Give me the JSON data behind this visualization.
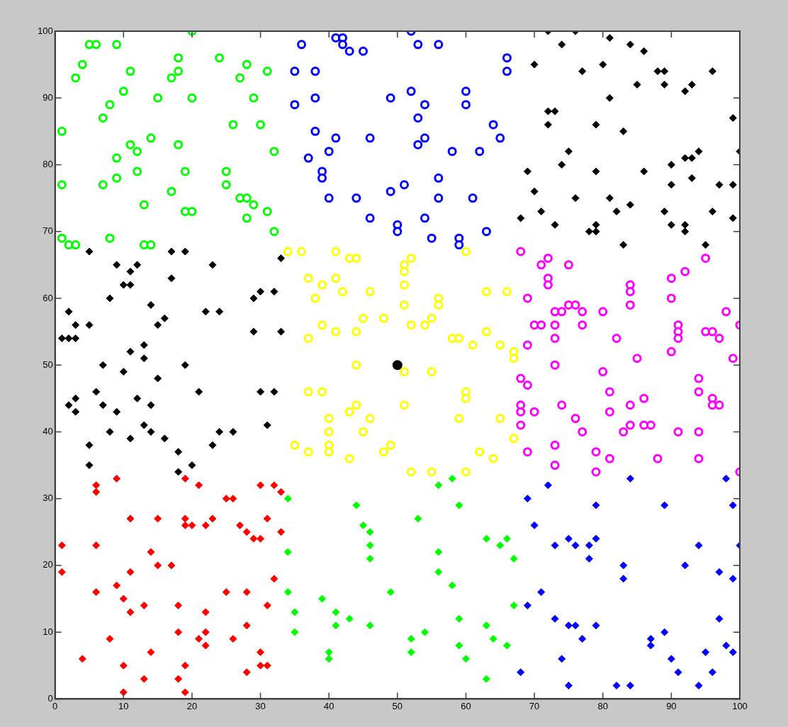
{
  "chart_data": {
    "type": "scatter",
    "xlim": [
      0,
      100
    ],
    "ylim": [
      0,
      100
    ],
    "xticks": [
      0,
      10,
      20,
      30,
      40,
      50,
      60,
      70,
      80,
      90,
      100
    ],
    "yticks": [
      0,
      10,
      20,
      30,
      40,
      50,
      60,
      70,
      80,
      90,
      100
    ],
    "grid": false,
    "series": [
      {
        "type": "scatter",
        "color": "#00ff00",
        "marker": "circle",
        "x": [
          1,
          3,
          4,
          5,
          6,
          9,
          11,
          10,
          8,
          7,
          20,
          18,
          18,
          17,
          24,
          28,
          27,
          31,
          15,
          20,
          29,
          26,
          30,
          14,
          11,
          12,
          18,
          32,
          9,
          12,
          19,
          25,
          25,
          1,
          7,
          9,
          17,
          27,
          28,
          29,
          13,
          19,
          20,
          31,
          28,
          32,
          1,
          2,
          3,
          8,
          13,
          14
        ],
        "values": [
          85,
          93,
          95,
          98,
          98,
          98,
          94,
          91,
          89,
          87,
          100,
          96,
          94,
          93,
          96,
          95,
          93,
          94,
          90,
          90,
          90,
          86,
          86,
          84,
          83,
          82,
          83,
          82,
          81,
          79,
          79,
          79,
          77,
          77,
          77,
          78,
          76,
          75,
          75,
          74,
          74,
          73,
          73,
          73,
          72,
          70,
          69,
          68,
          68,
          69,
          68,
          68
        ]
      },
      {
        "type": "scatter",
        "color": "#0000ff",
        "marker": "circle",
        "x": [
          36,
          41,
          42,
          42,
          43,
          45,
          52,
          53,
          56,
          66,
          66,
          35,
          38,
          35,
          38,
          49,
          52,
          54,
          53,
          60,
          60,
          64,
          65,
          38,
          41,
          40,
          37,
          46,
          54,
          53,
          58,
          62,
          39,
          39,
          40,
          44,
          49,
          51,
          56,
          56,
          61,
          46,
          50,
          50,
          54,
          55,
          59,
          59,
          63
        ],
        "values": [
          98,
          99,
          99,
          98,
          97,
          97,
          100,
          98,
          98,
          96,
          94,
          94,
          94,
          89,
          90,
          90,
          91,
          89,
          87,
          91,
          89,
          86,
          84,
          85,
          84,
          82,
          81,
          84,
          84,
          83,
          82,
          82,
          79,
          78,
          75,
          75,
          76,
          77,
          78,
          75,
          75,
          72,
          71,
          70,
          72,
          69,
          69,
          68,
          70
        ]
      },
      {
        "type": "scatter",
        "color": "#000000",
        "marker": "diamond",
        "x": [
          72,
          76,
          74,
          81,
          84,
          86,
          70,
          77,
          80,
          88,
          89,
          89,
          85,
          92,
          93,
          96,
          81,
          72,
          73,
          72,
          79,
          83,
          99,
          100,
          75,
          74,
          69,
          79,
          86,
          90,
          90,
          92,
          93,
          94,
          93,
          70,
          76,
          81,
          84,
          82,
          71,
          89,
          96,
          97,
          99,
          99,
          68,
          73,
          78,
          79,
          79,
          90,
          92,
          92,
          83,
          95
        ],
        "values": [
          100,
          100,
          98,
          99,
          98,
          97,
          95,
          94,
          95,
          94,
          94,
          92,
          92,
          91,
          92,
          94,
          90,
          88,
          88,
          86,
          86,
          85,
          87,
          82,
          82,
          80,
          79,
          79,
          79,
          80,
          77,
          81,
          81,
          82,
          78,
          76,
          75,
          75,
          74,
          73,
          73,
          73,
          73,
          77,
          77,
          72,
          72,
          71,
          70,
          71,
          70,
          71,
          71,
          70,
          68,
          68
        ]
      },
      {
        "type": "scatter",
        "color": "#000000",
        "marker": "diamond",
        "x": [
          5,
          9,
          11,
          12,
          10,
          11,
          17,
          19,
          17,
          23,
          8,
          2,
          3,
          5,
          1,
          2,
          3,
          14,
          15,
          16,
          22,
          24,
          29,
          30,
          32,
          29,
          33,
          33,
          11,
          13,
          13,
          7,
          19,
          10,
          15,
          6,
          7,
          2,
          3,
          3,
          12,
          14,
          9,
          21,
          30,
          32,
          31,
          8,
          11,
          13,
          14,
          16,
          24,
          26,
          23,
          5,
          5,
          18,
          18,
          20
        ],
        "values": [
          67,
          65,
          64,
          65,
          62,
          62,
          67,
          67,
          63,
          65,
          60,
          58,
          56,
          56,
          54,
          54,
          54,
          59,
          56,
          57,
          58,
          58,
          60,
          61,
          61,
          55,
          55,
          66,
          52,
          53,
          51,
          50,
          50,
          49,
          48,
          46,
          44,
          44,
          45,
          43,
          45,
          44,
          43,
          46,
          46,
          46,
          41,
          40,
          39,
          41,
          40,
          39,
          40,
          40,
          38,
          38,
          35,
          37,
          34,
          35
        ]
      },
      {
        "type": "scatter",
        "color": "#ffff00",
        "marker": "circle",
        "x": [
          34,
          36,
          41,
          43,
          44,
          51,
          51,
          52,
          60,
          37,
          39,
          41,
          42,
          38,
          46,
          51,
          51,
          56,
          56,
          63,
          66,
          39,
          41,
          44,
          45,
          48,
          37,
          52,
          54,
          55,
          58,
          59,
          61,
          63,
          65,
          67,
          67,
          44,
          51,
          55,
          37,
          39,
          60,
          60,
          44,
          43,
          51,
          40,
          40,
          40,
          40,
          46,
          45,
          59,
          65,
          67,
          35,
          37,
          43,
          48,
          49,
          62,
          64,
          52,
          55,
          60
        ],
        "values": [
          67,
          67,
          67,
          66,
          66,
          65,
          64,
          66,
          67,
          63,
          62,
          63,
          61,
          60,
          61,
          62,
          59,
          60,
          59,
          61,
          61,
          56,
          55,
          55,
          57,
          57,
          54,
          56,
          56,
          57,
          54,
          54,
          53,
          55,
          53,
          52,
          51,
          50,
          49,
          49,
          46,
          46,
          46,
          45,
          44,
          43,
          44,
          42,
          40,
          38,
          37,
          42,
          40,
          42,
          42,
          39,
          38,
          37,
          36,
          37,
          38,
          37,
          36,
          34,
          34,
          34
        ]
      },
      {
        "type": "scatter",
        "color": "#ff00ff",
        "marker": "circle",
        "x": [
          68,
          71,
          72,
          72,
          72,
          75,
          69,
          73,
          74,
          75,
          76,
          77,
          70,
          71,
          73,
          77,
          73,
          80,
          84,
          84,
          84,
          82,
          90,
          90,
          92,
          95,
          98,
          100,
          91,
          91,
          91,
          95,
          96,
          97,
          69,
          90,
          85,
          99,
          73,
          80,
          68,
          69,
          68,
          68,
          68,
          70,
          74,
          76,
          77,
          81,
          81,
          84,
          86,
          83,
          84,
          86,
          87,
          91,
          94,
          94,
          94,
          96,
          96,
          97,
          69,
          73,
          73,
          79,
          79,
          81,
          88,
          94,
          100
        ],
        "values": [
          67,
          65,
          66,
          63,
          62,
          65,
          60,
          58,
          58,
          59,
          59,
          58,
          56,
          56,
          56,
          56,
          54,
          58,
          62,
          61,
          59,
          54,
          63,
          60,
          64,
          66,
          58,
          56,
          56,
          55,
          54,
          55,
          55,
          54,
          53,
          52,
          51,
          51,
          50,
          49,
          48,
          47,
          44,
          43,
          41,
          43,
          44,
          42,
          40,
          46,
          43,
          44,
          45,
          40,
          41,
          41,
          41,
          40,
          48,
          46,
          40,
          45,
          44,
          44,
          37,
          38,
          35,
          37,
          34,
          36,
          36,
          36,
          34
        ]
      },
      {
        "type": "scatter",
        "color": "#ff0000",
        "marker": "diamond",
        "x": [
          9,
          6,
          6,
          19,
          21,
          30,
          32,
          33,
          25,
          26,
          11,
          15,
          19,
          19,
          20,
          22,
          23,
          27,
          28,
          29,
          30,
          31,
          33,
          1,
          1,
          6,
          14,
          15,
          17,
          11,
          9,
          10,
          11,
          6,
          13,
          18,
          25,
          28,
          32,
          31,
          22,
          22,
          21,
          22,
          28,
          18,
          26,
          8,
          4,
          14,
          10,
          13,
          10,
          19,
          18,
          19,
          28,
          30,
          30,
          31
        ],
        "values": [
          33,
          32,
          31,
          33,
          32,
          32,
          32,
          31,
          30,
          30,
          27,
          27,
          27,
          26,
          26,
          26,
          27,
          26,
          25,
          24,
          24,
          27,
          25,
          23,
          19,
          23,
          22,
          20,
          20,
          19,
          17,
          15,
          13,
          16,
          14,
          14,
          16,
          16,
          18,
          14,
          13,
          10,
          9,
          8,
          11,
          10,
          9,
          9,
          6,
          7,
          5,
          3,
          1,
          5,
          3,
          1,
          4,
          7,
          5,
          5
        ]
      },
      {
        "type": "scatter",
        "color": "#00ff00",
        "marker": "diamond",
        "x": [
          34,
          44,
          45,
          46,
          46,
          46,
          53,
          56,
          58,
          59,
          34,
          34,
          35,
          35,
          39,
          41,
          41,
          43,
          46,
          40,
          40,
          49,
          52,
          52,
          54,
          56,
          56,
          58,
          59,
          59,
          60,
          63,
          65,
          66,
          67,
          63,
          64,
          66,
          67,
          63
        ],
        "values": [
          30,
          29,
          26,
          25,
          23,
          21,
          27,
          32,
          33,
          29,
          22,
          16,
          13,
          10,
          15,
          13,
          11,
          12,
          11,
          7,
          6,
          16,
          9,
          7,
          10,
          22,
          19,
          17,
          12,
          8,
          6,
          24,
          23,
          24,
          21,
          11,
          9,
          8,
          14,
          3
        ]
      },
      {
        "type": "scatter",
        "color": "#0000ff",
        "marker": "diamond",
        "x": [
          72,
          84,
          98,
          69,
          79,
          89,
          99,
          70,
          73,
          75,
          76,
          78,
          78,
          79,
          94,
          100,
          83,
          83,
          92,
          97,
          99,
          71,
          69,
          73,
          75,
          76,
          79,
          77,
          97,
          87,
          87,
          89,
          74,
          68,
          90,
          91,
          95,
          98,
          99,
          96,
          75,
          82,
          84,
          94
        ],
        "values": [
          32,
          33,
          33,
          30,
          29,
          29,
          29,
          26,
          23,
          24,
          23,
          23,
          21,
          24,
          23,
          23,
          20,
          18,
          20,
          19,
          18,
          16,
          14,
          12,
          11,
          11,
          11,
          9,
          12,
          9,
          8,
          10,
          6,
          4,
          6,
          4,
          7,
          8,
          7,
          4,
          2,
          2,
          2,
          2
        ]
      },
      {
        "type": "scatter",
        "color": "#000000",
        "marker": "dot",
        "x": [
          50
        ],
        "values": [
          50
        ]
      }
    ]
  }
}
